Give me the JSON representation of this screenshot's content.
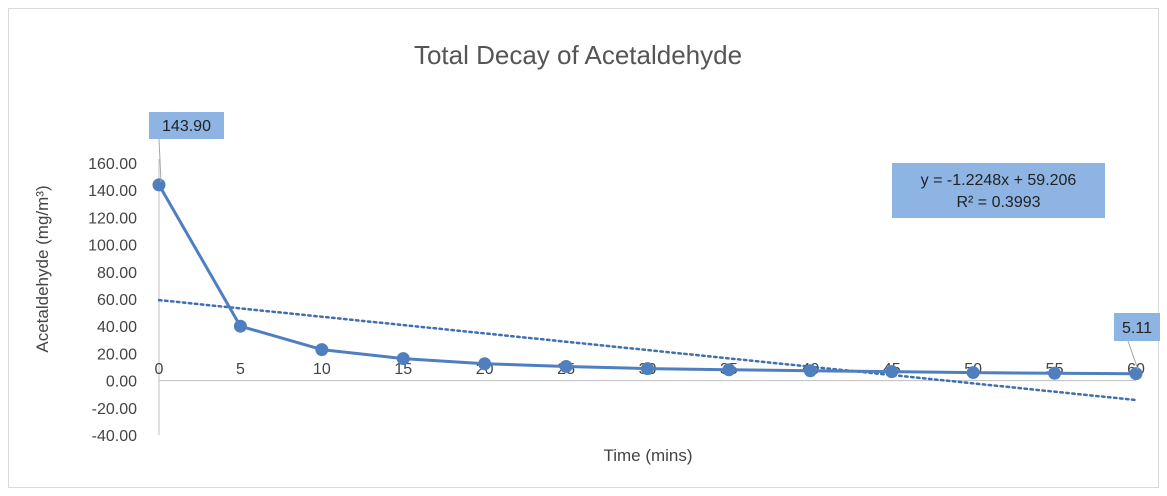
{
  "chart_data": {
    "type": "line",
    "title": "Total Decay of Acetaldehyde",
    "xlabel": "Time (mins)",
    "ylabel": "Acetaldehyde (mg/m³)",
    "x": [
      0,
      5,
      10,
      15,
      20,
      25,
      30,
      35,
      40,
      45,
      50,
      55,
      60
    ],
    "x_ticks": [
      "0",
      "5",
      "10",
      "15",
      "20",
      "25",
      "30",
      "35",
      "40",
      "45",
      "50",
      "55",
      "60"
    ],
    "y_ticks": [
      "160.00",
      "140.00",
      "120.00",
      "100.00",
      "80.00",
      "60.00",
      "40.00",
      "20.00",
      "0.00",
      "-20.00",
      "-40.00"
    ],
    "ylim": [
      -40,
      160
    ],
    "xlim": [
      0,
      60
    ],
    "grid": false,
    "legend": "none",
    "series": [
      {
        "values": [
          143.9,
          40.0,
          22.8,
          16.2,
          12.4,
          10.4,
          8.8,
          8.0,
          7.2,
          6.6,
          5.9,
          5.4,
          5.11
        ],
        "color": "#4F7FBF"
      }
    ],
    "data_labels": [
      {
        "index": 0,
        "text": "143.90"
      },
      {
        "index": 12,
        "text": "5.11"
      }
    ],
    "trendline": {
      "type": "linear",
      "slope": -1.2248,
      "intercept": 59.206,
      "style": "dotted",
      "color": "#3F6FAF",
      "equation_text": "y = -1.2248x + 59.206",
      "r2_text": "R² = 0.3993"
    },
    "colors": {
      "callout_fill": "#8DB4E2",
      "axis": "#BFBFBF"
    }
  }
}
